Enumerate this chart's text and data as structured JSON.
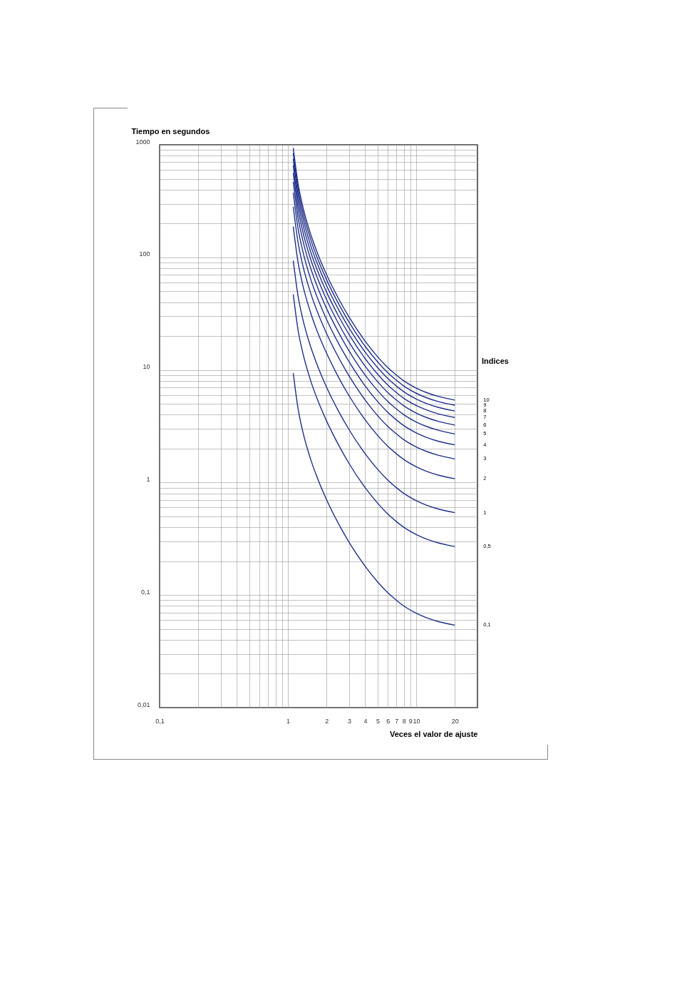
{
  "chart_data": {
    "type": "line",
    "xlabel": "Veces el valor de ajuste",
    "ylabel": "Tiempo en segundos",
    "legend_title": "Indices",
    "log": "xy",
    "grid": true,
    "legend": false,
    "marker": "none",
    "line_style": "solid",
    "xlim": [
      0.1,
      30
    ],
    "ylim": [
      0.01,
      1000
    ],
    "xticks": [
      {
        "value": 0.1,
        "label": "0,1"
      },
      {
        "value": 0.2,
        "label": null
      },
      {
        "value": 0.3,
        "label": null
      },
      {
        "value": 0.4,
        "label": null
      },
      {
        "value": 0.5,
        "label": null
      },
      {
        "value": 0.6,
        "label": null
      },
      {
        "value": 0.7,
        "label": null
      },
      {
        "value": 0.8,
        "label": null
      },
      {
        "value": 0.9,
        "label": null
      },
      1,
      2,
      3,
      4,
      5,
      6,
      7,
      8,
      9,
      10,
      20
    ],
    "yticks": [
      {
        "value": 0.01,
        "label": "0,01"
      },
      {
        "value": 0.02,
        "label": null
      },
      {
        "value": 0.03,
        "label": null
      },
      {
        "value": 0.04,
        "label": null
      },
      {
        "value": 0.05,
        "label": null
      },
      {
        "value": 0.06,
        "label": null
      },
      {
        "value": 0.07,
        "label": null
      },
      {
        "value": 0.08,
        "label": null
      },
      {
        "value": 0.09,
        "label": null
      },
      {
        "value": 0.1,
        "label": "0,1"
      },
      {
        "value": 0.2,
        "label": null
      },
      {
        "value": 0.3,
        "label": null
      },
      {
        "value": 0.4,
        "label": null
      },
      {
        "value": 0.5,
        "label": null
      },
      {
        "value": 0.6,
        "label": null
      },
      {
        "value": 0.7,
        "label": null
      },
      {
        "value": 0.8,
        "label": null
      },
      {
        "value": 0.9,
        "label": null
      },
      1,
      {
        "value": 2,
        "label": null
      },
      {
        "value": 3,
        "label": null
      },
      {
        "value": 4,
        "label": null
      },
      {
        "value": 5,
        "label": null
      },
      {
        "value": 6,
        "label": null
      },
      {
        "value": 7,
        "label": null
      },
      {
        "value": 8,
        "label": null
      },
      {
        "value": 9,
        "label": null
      },
      10,
      {
        "value": 20,
        "label": null
      },
      {
        "value": 30,
        "label": null
      },
      {
        "value": 40,
        "label": null
      },
      {
        "value": 50,
        "label": null
      },
      {
        "value": 60,
        "label": null
      },
      {
        "value": 70,
        "label": null
      },
      {
        "value": 80,
        "label": null
      },
      {
        "value": 90,
        "label": null
      },
      100,
      {
        "value": 200,
        "label": null
      },
      {
        "value": 300,
        "label": null
      },
      {
        "value": 400,
        "label": null
      },
      {
        "value": 500,
        "label": null
      },
      {
        "value": 600,
        "label": null
      },
      {
        "value": 700,
        "label": null
      },
      {
        "value": 800,
        "label": null
      },
      {
        "value": 900,
        "label": null
      },
      1000
    ],
    "x": [
      1.1,
      1.2,
      1.3,
      1.5,
      1.7,
      2,
      2.5,
      3,
      4,
      5,
      6,
      7,
      8,
      10,
      12,
      15,
      20
    ],
    "series": [
      {
        "name": "10",
        "color": "#1f2f8a",
        "values": [
          939,
          451,
          289,
          162,
          109,
          70.3,
          42.3,
          29.4,
          18,
          13.1,
          10.5,
          9,
          8,
          6.9,
          6.3,
          5.8,
          5.4
        ]
      },
      {
        "name": "9",
        "color": "#1f2f8a",
        "values": [
          845,
          406,
          260,
          146,
          97.8,
          63.3,
          38.1,
          26.5,
          16.2,
          11.8,
          9.45,
          8.1,
          7.2,
          6.21,
          5.67,
          5.22,
          4.86
        ]
      },
      {
        "name": "8",
        "color": "#1f2f8a",
        "values": [
          751,
          360,
          231,
          129,
          87,
          56.2,
          33.8,
          23.5,
          14.4,
          10.5,
          8.4,
          7.2,
          6.4,
          5.52,
          5.04,
          4.64,
          4.32
        ]
      },
      {
        "name": "7",
        "color": "#1f2f8a",
        "values": [
          657,
          315,
          202,
          113,
          76.1,
          49.2,
          29.6,
          20.6,
          12.6,
          9.17,
          7.35,
          6.3,
          5.6,
          4.83,
          4.41,
          4.06,
          3.78
        ]
      },
      {
        "name": "6",
        "color": "#1f2f8a",
        "values": [
          563,
          270,
          173,
          97.1,
          65.2,
          42.2,
          25.4,
          17.6,
          10.8,
          7.86,
          6.3,
          5.4,
          4.8,
          4.14,
          3.78,
          3.48,
          3.24
        ]
      },
      {
        "name": "5",
        "color": "#1f2f8a",
        "values": [
          469,
          225,
          145,
          80.9,
          54.4,
          35.2,
          21.2,
          14.7,
          9,
          6.55,
          5.25,
          4.5,
          4,
          3.45,
          3.15,
          2.9,
          2.7
        ]
      },
      {
        "name": "4",
        "color": "#1f2f8a",
        "values": [
          375,
          180,
          116,
          64.7,
          43.5,
          28.1,
          16.9,
          11.8,
          7.2,
          5.24,
          4.2,
          3.6,
          3.2,
          2.76,
          2.52,
          2.32,
          2.16
        ]
      },
      {
        "name": "3",
        "color": "#1f2f8a",
        "values": [
          282,
          135,
          86.7,
          48.5,
          32.6,
          21.1,
          12.7,
          8.82,
          5.4,
          3.93,
          3.15,
          2.7,
          2.4,
          2.07,
          1.89,
          1.74,
          1.62
        ]
      },
      {
        "name": "2",
        "color": "#1f2f8a",
        "values": [
          188,
          90.1,
          57.8,
          32.4,
          21.7,
          14.1,
          8.46,
          5.88,
          3.6,
          2.62,
          2.1,
          1.8,
          1.6,
          1.38,
          1.26,
          1.16,
          1.08
        ]
      },
      {
        "name": "1",
        "color": "#1f2f8a",
        "values": [
          93.9,
          45.1,
          28.9,
          16.2,
          10.9,
          7.03,
          4.23,
          2.94,
          1.8,
          1.31,
          1.05,
          0.9,
          0.8,
          0.69,
          0.63,
          0.58,
          0.54
        ]
      },
      {
        "name": "0,5",
        "color": "#1f2f8a",
        "values": [
          46.9,
          22.5,
          14.5,
          8.09,
          5.44,
          3.52,
          2.12,
          1.47,
          0.9,
          0.655,
          0.525,
          0.45,
          0.4,
          0.345,
          0.315,
          0.29,
          0.27
        ]
      },
      {
        "name": "0,1",
        "color": "#1f2f8a",
        "values": [
          9.39,
          4.51,
          2.89,
          1.62,
          1.09,
          0.703,
          0.423,
          0.294,
          0.18,
          0.131,
          0.105,
          0.09,
          0.08,
          0.069,
          0.063,
          0.058,
          0.054
        ]
      }
    ]
  }
}
